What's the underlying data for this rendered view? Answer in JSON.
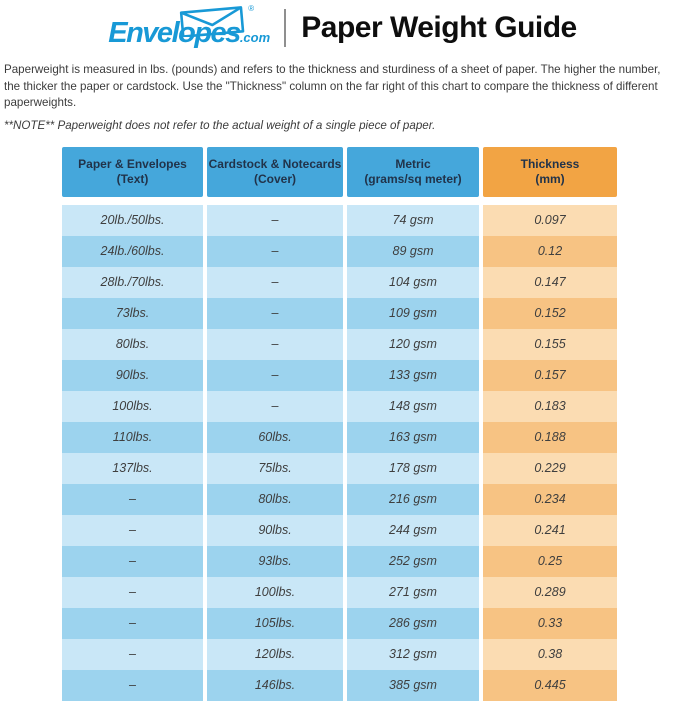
{
  "header": {
    "logo": {
      "brand": "Envelopes",
      "tld": ".com",
      "registered_mark": "®"
    },
    "title": "Paper Weight Guide"
  },
  "intro": {
    "paragraph": "Paperweight is measured in lbs. (pounds) and refers to the thickness and sturdiness of a sheet of paper. The higher the number, the thicker the paper or cardstock. Use the \"Thickness\" column on the far right of this chart to compare the thickness of different paperweights.",
    "note": "**NOTE** Paperweight does not refer to the actual weight of a single piece of paper."
  },
  "table": {
    "headers": [
      {
        "line1": "Paper & Envelopes",
        "line2": "(Text)"
      },
      {
        "line1": "Cardstock & Notecards",
        "line2": "(Cover)"
      },
      {
        "line1": "Metric",
        "line2": "(grams/sq meter)"
      },
      {
        "line1": "Thickness",
        "line2": "(mm)"
      }
    ]
  },
  "chart_data": {
    "type": "table",
    "title": "Paper Weight Guide",
    "columns": [
      "Paper & Envelopes (Text)",
      "Cardstock & Notecards (Cover)",
      "Metric (grams/sq meter)",
      "Thickness (mm)"
    ],
    "rows": [
      [
        "20lb./50lbs.",
        "–",
        "74 gsm",
        "0.097"
      ],
      [
        "24lb./60lbs.",
        "–",
        "89 gsm",
        "0.12"
      ],
      [
        "28lb./70lbs.",
        "–",
        "104 gsm",
        "0.147"
      ],
      [
        "73lbs.",
        "–",
        "109 gsm",
        "0.152"
      ],
      [
        "80lbs.",
        "–",
        "120 gsm",
        "0.155"
      ],
      [
        "90lbs.",
        "–",
        "133 gsm",
        "0.157"
      ],
      [
        "100lbs.",
        "–",
        "148 gsm",
        "0.183"
      ],
      [
        "110lbs.",
        "60lbs.",
        "163 gsm",
        "0.188"
      ],
      [
        "137lbs.",
        "75lbs.",
        "178 gsm",
        "0.229"
      ],
      [
        "–",
        "80lbs.",
        "216 gsm",
        "0.234"
      ],
      [
        "–",
        "90lbs.",
        "244 gsm",
        "0.241"
      ],
      [
        "–",
        "93lbs.",
        "252 gsm",
        "0.25"
      ],
      [
        "–",
        "100lbs.",
        "271 gsm",
        "0.289"
      ],
      [
        "–",
        "105lbs.",
        "286 gsm",
        "0.33"
      ],
      [
        "–",
        "120lbs.",
        "312 gsm",
        "0.38"
      ],
      [
        "–",
        "146lbs.",
        "385 gsm",
        "0.445"
      ]
    ]
  },
  "colors": {
    "logo_blue": "#1899d6",
    "header_blue": "#45a7db",
    "header_orange": "#f2a444",
    "header_text": "#21334a",
    "cell_text": "#3f3f3f",
    "row_blue_light": "#c9e7f7",
    "row_blue_dark": "#9cd3ee",
    "row_orange_light": "#fbdcb2",
    "row_orange_dark": "#f7c383"
  }
}
